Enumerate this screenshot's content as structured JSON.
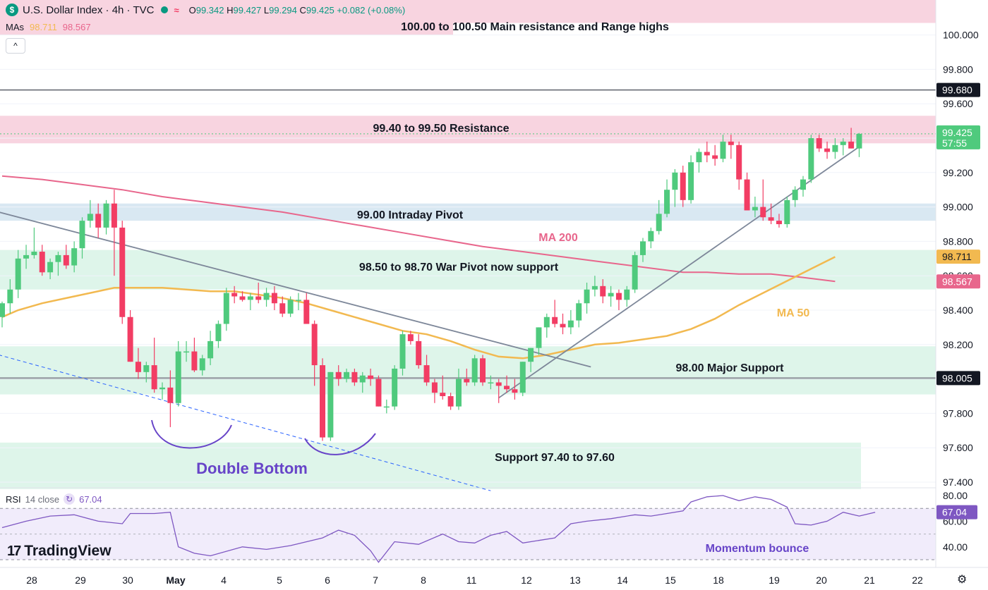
{
  "header": {
    "logo_glyph": "$",
    "symbol": "U.S. Dollar Index · 4h · TVC",
    "open_label": "O",
    "open": "99.342",
    "high_label": "H",
    "high": "99.427",
    "low_label": "L",
    "low": "99.294",
    "close_label": "C",
    "close": "99.425",
    "change": "+0.082 (+0.08%)",
    "mas_label": "MAs",
    "ma50_value": "98.711",
    "ma200_value": "98.567",
    "collapse_glyph": "^"
  },
  "rsi": {
    "label": "RSI",
    "params": "14 close",
    "value": "67.04"
  },
  "brand": {
    "name": "TradingView",
    "icon": "tradingview-logo-icon"
  },
  "icons": {
    "settings": "gear-icon",
    "symbol_logo": "dollar-icon",
    "compare": "wave-icon",
    "rsi": "refresh-icon"
  },
  "colors": {
    "up": "#4fca7d",
    "down": "#f23d64",
    "ma50": "#f2b950",
    "ma200": "#e8668c",
    "trend": "#7d8799",
    "rsi_line": "#7e57c2",
    "annot_purple": "#6744c8",
    "resistance_zone": "#f8d4e0",
    "support_zone": "#def5ea",
    "pivot_zone": "#d9e8f2"
  },
  "chart_data": {
    "type": "candlestick",
    "x_labels": [
      "28",
      "29",
      "30",
      "May",
      "4",
      "5",
      "6",
      "7",
      "8",
      "11",
      "12",
      "13",
      "14",
      "15",
      "18",
      "19",
      "20",
      "21",
      "22"
    ],
    "y_ticks": [
      "97.400",
      "97.600",
      "97.800",
      "98.000",
      "98.200",
      "98.400",
      "98.600",
      "98.800",
      "99.000",
      "99.200",
      "99.400",
      "99.600",
      "99.800",
      "100.000"
    ],
    "ylim": [
      97.34,
      100.27
    ],
    "candles": [
      [
        98.36,
        98.45,
        98.3,
        98.44
      ],
      [
        98.44,
        98.58,
        98.38,
        98.52
      ],
      [
        98.52,
        98.75,
        98.47,
        98.7
      ],
      [
        98.7,
        98.78,
        98.64,
        98.72
      ],
      [
        98.72,
        98.88,
        98.7,
        98.74
      ],
      [
        98.74,
        98.78,
        98.6,
        98.62
      ],
      [
        98.62,
        98.7,
        98.58,
        98.68
      ],
      [
        98.68,
        98.74,
        98.6,
        98.72
      ],
      [
        98.72,
        98.78,
        98.64,
        98.66
      ],
      [
        98.66,
        98.8,
        98.62,
        98.76
      ],
      [
        98.76,
        98.94,
        98.7,
        98.92
      ],
      [
        98.92,
        99.04,
        98.88,
        98.96
      ],
      [
        98.96,
        99.02,
        98.82,
        98.88
      ],
      [
        98.88,
        99.04,
        98.84,
        99.02
      ],
      [
        99.02,
        99.1,
        98.6,
        98.88
      ],
      [
        98.88,
        98.92,
        98.32,
        98.36
      ],
      [
        98.36,
        98.4,
        98.1,
        98.1
      ],
      [
        98.1,
        98.18,
        98.0,
        98.04
      ],
      [
        98.04,
        98.1,
        97.98,
        98.08
      ],
      [
        98.08,
        98.24,
        97.92,
        97.94
      ],
      [
        97.94,
        97.98,
        97.88,
        97.95
      ],
      [
        97.95,
        98.05,
        97.72,
        97.86
      ],
      [
        97.86,
        98.22,
        97.84,
        98.16
      ],
      [
        98.16,
        98.22,
        98.1,
        98.16
      ],
      [
        98.16,
        98.24,
        98.04,
        98.05
      ],
      [
        98.05,
        98.14,
        98.02,
        98.12
      ],
      [
        98.12,
        98.28,
        98.08,
        98.22
      ],
      [
        98.22,
        98.34,
        98.18,
        98.32
      ],
      [
        98.32,
        98.53,
        98.28,
        98.5
      ],
      [
        98.5,
        98.54,
        98.44,
        98.48
      ],
      [
        98.48,
        98.51,
        98.45,
        98.46
      ],
      [
        98.46,
        98.5,
        98.4,
        98.48
      ],
      [
        98.48,
        98.56,
        98.44,
        98.46
      ],
      [
        98.46,
        98.53,
        98.42,
        98.5
      ],
      [
        98.5,
        98.54,
        98.4,
        98.44
      ],
      [
        98.44,
        98.48,
        98.36,
        98.38
      ],
      [
        98.38,
        98.48,
        98.36,
        98.46
      ],
      [
        98.46,
        98.5,
        98.4,
        98.46
      ],
      [
        98.46,
        98.5,
        98.34,
        98.32
      ],
      [
        98.32,
        98.34,
        97.96,
        98.08
      ],
      [
        98.08,
        98.12,
        97.64,
        97.66
      ],
      [
        97.66,
        98.04,
        97.64,
        98.04
      ],
      [
        98.04,
        98.08,
        97.96,
        98.0
      ],
      [
        98.0,
        98.06,
        97.98,
        98.04
      ],
      [
        98.04,
        98.06,
        97.96,
        97.98
      ],
      [
        97.98,
        98.04,
        97.92,
        98.02
      ],
      [
        98.02,
        98.06,
        97.96,
        98.0
      ],
      [
        98.0,
        98.02,
        97.84,
        97.84
      ],
      [
        97.84,
        97.88,
        97.8,
        97.84
      ],
      [
        97.84,
        98.08,
        97.82,
        98.06
      ],
      [
        98.06,
        98.28,
        98.02,
        98.26
      ],
      [
        98.26,
        98.28,
        98.2,
        98.22
      ],
      [
        98.22,
        98.26,
        98.06,
        98.08
      ],
      [
        98.08,
        98.14,
        97.96,
        97.98
      ],
      [
        97.98,
        98.0,
        97.86,
        97.92
      ],
      [
        97.92,
        98.02,
        97.88,
        97.9
      ],
      [
        97.9,
        97.92,
        97.82,
        97.84
      ],
      [
        97.84,
        98.06,
        97.82,
        98.0
      ],
      [
        98.0,
        98.06,
        97.96,
        97.98
      ],
      [
        97.98,
        98.14,
        97.96,
        98.12
      ],
      [
        98.12,
        98.14,
        97.96,
        97.98
      ],
      [
        97.98,
        98.02,
        97.94,
        97.98
      ],
      [
        97.98,
        98.0,
        97.86,
        97.96
      ],
      [
        97.96,
        98.02,
        97.92,
        97.94
      ],
      [
        97.94,
        98.0,
        97.88,
        97.92
      ],
      [
        97.92,
        98.1,
        97.9,
        98.1
      ],
      [
        98.1,
        98.18,
        98.04,
        98.18
      ],
      [
        98.18,
        98.3,
        98.14,
        98.3
      ],
      [
        98.3,
        98.38,
        98.24,
        98.36
      ],
      [
        98.36,
        98.46,
        98.3,
        98.32
      ],
      [
        98.32,
        98.38,
        98.26,
        98.3
      ],
      [
        98.3,
        98.4,
        98.26,
        98.34
      ],
      [
        98.34,
        98.46,
        98.3,
        98.44
      ],
      [
        98.44,
        98.56,
        98.38,
        98.52
      ],
      [
        98.52,
        98.6,
        98.48,
        98.54
      ],
      [
        98.54,
        98.58,
        98.44,
        98.48
      ],
      [
        98.48,
        98.54,
        98.42,
        98.5
      ],
      [
        98.5,
        98.52,
        98.4,
        98.46
      ],
      [
        98.46,
        98.54,
        98.42,
        98.52
      ],
      [
        98.52,
        98.74,
        98.5,
        98.72
      ],
      [
        98.72,
        98.82,
        98.68,
        98.8
      ],
      [
        98.8,
        98.88,
        98.76,
        98.86
      ],
      [
        98.86,
        99.04,
        98.84,
        98.96
      ],
      [
        98.96,
        99.16,
        98.94,
        99.1
      ],
      [
        99.1,
        99.22,
        99.0,
        99.2
      ],
      [
        99.2,
        99.24,
        99.0,
        99.04
      ],
      [
        99.04,
        99.3,
        99.02,
        99.26
      ],
      [
        99.26,
        99.34,
        99.2,
        99.32
      ],
      [
        99.32,
        99.38,
        99.26,
        99.3
      ],
      [
        99.3,
        99.36,
        99.24,
        99.28
      ],
      [
        99.28,
        99.42,
        99.26,
        99.38
      ],
      [
        99.38,
        99.42,
        99.28,
        99.36
      ],
      [
        99.36,
        99.38,
        99.1,
        99.16
      ],
      [
        99.16,
        99.2,
        98.98,
        98.98
      ],
      [
        98.98,
        99.06,
        98.94,
        99.0
      ],
      [
        99.0,
        99.16,
        98.92,
        98.94
      ],
      [
        98.94,
        99.02,
        98.9,
        98.92
      ],
      [
        98.92,
        98.96,
        98.88,
        98.9
      ],
      [
        98.9,
        99.06,
        98.88,
        99.04
      ],
      [
        99.04,
        99.12,
        99.0,
        99.1
      ],
      [
        99.1,
        99.18,
        99.06,
        99.16
      ],
      [
        99.16,
        99.42,
        99.14,
        99.4
      ],
      [
        99.4,
        99.42,
        99.32,
        99.34
      ],
      [
        99.34,
        99.38,
        99.28,
        99.32
      ],
      [
        99.32,
        99.4,
        99.28,
        99.36
      ],
      [
        99.36,
        99.4,
        99.3,
        99.38
      ],
      [
        99.38,
        99.46,
        99.34,
        99.34
      ],
      [
        99.34,
        99.43,
        99.29,
        99.425
      ]
    ],
    "ma50": [
      [
        0,
        98.36
      ],
      [
        2,
        98.4
      ],
      [
        5,
        98.44
      ],
      [
        8,
        98.47
      ],
      [
        11,
        98.5
      ],
      [
        14,
        98.53
      ],
      [
        17,
        98.53
      ],
      [
        20,
        98.53
      ],
      [
        23,
        98.52
      ],
      [
        26,
        98.51
      ],
      [
        29,
        98.51
      ],
      [
        32,
        98.49
      ],
      [
        35,
        98.47
      ],
      [
        38,
        98.44
      ],
      [
        41,
        98.4
      ],
      [
        44,
        98.36
      ],
      [
        47,
        98.32
      ],
      [
        50,
        98.28
      ],
      [
        53,
        98.26
      ],
      [
        56,
        98.22
      ],
      [
        59,
        98.17
      ],
      [
        62,
        98.13
      ],
      [
        65,
        98.12
      ],
      [
        68,
        98.14
      ],
      [
        71,
        98.17
      ],
      [
        74,
        98.2
      ],
      [
        77,
        98.21
      ],
      [
        80,
        98.23
      ],
      [
        83,
        98.25
      ],
      [
        86,
        98.29
      ],
      [
        89,
        98.35
      ],
      [
        92,
        98.43
      ],
      [
        95,
        98.5
      ],
      [
        98,
        98.57
      ],
      [
        101,
        98.64
      ],
      [
        104,
        98.71
      ]
    ],
    "ma200": [
      [
        0,
        99.18
      ],
      [
        5,
        99.16
      ],
      [
        10,
        99.13
      ],
      [
        15,
        99.1
      ],
      [
        20,
        99.06
      ],
      [
        25,
        99.03
      ],
      [
        30,
        99.0
      ],
      [
        35,
        98.97
      ],
      [
        40,
        98.93
      ],
      [
        45,
        98.89
      ],
      [
        50,
        98.85
      ],
      [
        55,
        98.81
      ],
      [
        60,
        98.77
      ],
      [
        65,
        98.74
      ],
      [
        70,
        98.71
      ],
      [
        75,
        98.68
      ],
      [
        80,
        98.65
      ],
      [
        85,
        98.62
      ],
      [
        88,
        98.62
      ],
      [
        92,
        98.61
      ],
      [
        96,
        98.61
      ],
      [
        100,
        98.59
      ],
      [
        104,
        98.567
      ]
    ],
    "trendlines": [
      {
        "from": [
          -1.2,
          98.98
        ],
        "to": [
          73.5,
          98.07
        ],
        "style": "solid"
      },
      {
        "from": [
          62.0,
          97.89
        ],
        "to": [
          107.0,
          99.35
        ],
        "style": "solid"
      },
      {
        "from": [
          -1.2,
          98.15
        ],
        "to": [
          61.0,
          97.35
        ],
        "style": "dashed"
      }
    ],
    "horizontal_lines": [
      {
        "value": 99.68,
        "label": "99.680"
      },
      {
        "value": 98.005,
        "label": "98.005"
      }
    ],
    "zones": [
      {
        "from": 100.07,
        "to": 100.3,
        "color": "resistance",
        "label": "100.00 to 100.50 Main resistance and Range highs"
      },
      {
        "from": 99.37,
        "to": 99.53,
        "color": "resistance",
        "label": "99.40 to 99.50 Resistance"
      },
      {
        "from": 98.92,
        "to": 99.02,
        "color": "pivot",
        "label": "99.00 Intraday Pivot"
      },
      {
        "from": 98.52,
        "to": 98.75,
        "color": "support",
        "label": "98.50 to 98.70 War Pivot now support"
      },
      {
        "from": 97.91,
        "to": 98.19,
        "color": "support",
        "label": "98.00 Major Support"
      },
      {
        "from": 97.36,
        "to": 97.63,
        "color": "support",
        "label": "Support 97.40 to 97.60"
      }
    ],
    "annotations": {
      "ma200_label": "MA 200",
      "ma50_label": "MA 50",
      "pattern_label": "Double Bottom",
      "rsi_note": "Momentum bounce"
    },
    "price_tags": [
      {
        "value": 99.68,
        "text": "99.680",
        "style": "dark"
      },
      {
        "value": 99.425,
        "text": "99.425",
        "sub": "57:55",
        "style": "up"
      },
      {
        "value": 98.711,
        "text": "98.711",
        "style": "ma50"
      },
      {
        "value": 98.567,
        "text": "98.567",
        "style": "ma200"
      },
      {
        "value": 98.005,
        "text": "98.005",
        "style": "dark"
      }
    ],
    "rsi_data": {
      "levels": [
        70,
        30
      ],
      "mid": 50,
      "ylim": [
        27,
        83
      ],
      "ticks": [
        "80.00",
        "60.00",
        "40.00"
      ],
      "points": [
        [
          0,
          55
        ],
        [
          3,
          60
        ],
        [
          6,
          64
        ],
        [
          9,
          65
        ],
        [
          12,
          60
        ],
        [
          15,
          58
        ],
        [
          16,
          66
        ],
        [
          19,
          66
        ],
        [
          21,
          67
        ],
        [
          22,
          40
        ],
        [
          24,
          35
        ],
        [
          26,
          33
        ],
        [
          30,
          40
        ],
        [
          33,
          38
        ],
        [
          36,
          41
        ],
        [
          40,
          47
        ],
        [
          42,
          53
        ],
        [
          44,
          49
        ],
        [
          46,
          37
        ],
        [
          47,
          28
        ],
        [
          49,
          44
        ],
        [
          52,
          42
        ],
        [
          55,
          50
        ],
        [
          57,
          44
        ],
        [
          59,
          43
        ],
        [
          61,
          49
        ],
        [
          63,
          52
        ],
        [
          65,
          43
        ],
        [
          67,
          45
        ],
        [
          69,
          47
        ],
        [
          71,
          58
        ],
        [
          73,
          60
        ],
        [
          76,
          62
        ],
        [
          79,
          65
        ],
        [
          81,
          64
        ],
        [
          83,
          66
        ],
        [
          85,
          68
        ],
        [
          86,
          75
        ],
        [
          88,
          79
        ],
        [
          90,
          80
        ],
        [
          92,
          76
        ],
        [
          94,
          79
        ],
        [
          96,
          77
        ],
        [
          98,
          71
        ],
        [
          99,
          58
        ],
        [
          101,
          57
        ],
        [
          103,
          60
        ],
        [
          105,
          67
        ],
        [
          107,
          64
        ],
        [
          109,
          67
        ]
      ]
    }
  }
}
